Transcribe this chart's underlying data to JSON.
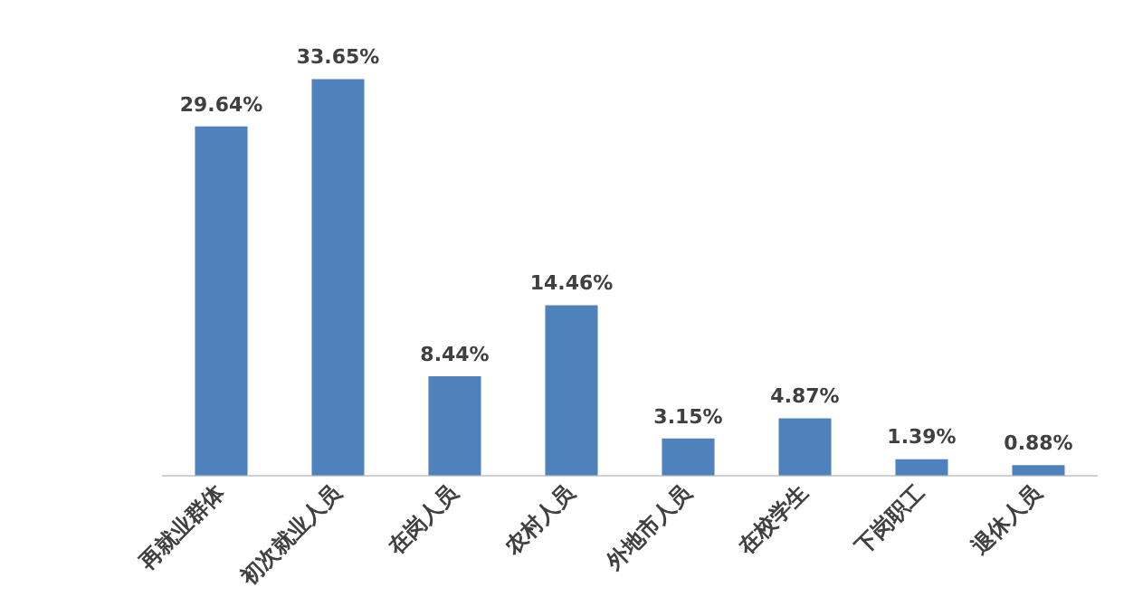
{
  "chart_data": {
    "type": "bar",
    "categories": [
      "再就业群体",
      "初次就业人员",
      "在岗人员",
      "农村人员",
      "外地市人员",
      "在校学生",
      "下岗职工",
      "退休人员"
    ],
    "values": [
      29.64,
      33.65,
      8.44,
      14.46,
      3.15,
      4.87,
      1.39,
      0.88
    ],
    "value_labels": [
      "29.64%",
      "33.65%",
      "8.44%",
      "14.46%",
      "3.15%",
      "4.87%",
      "1.39%",
      "0.88%"
    ],
    "color": "#4f81bd",
    "grid": false,
    "legend": false
  }
}
